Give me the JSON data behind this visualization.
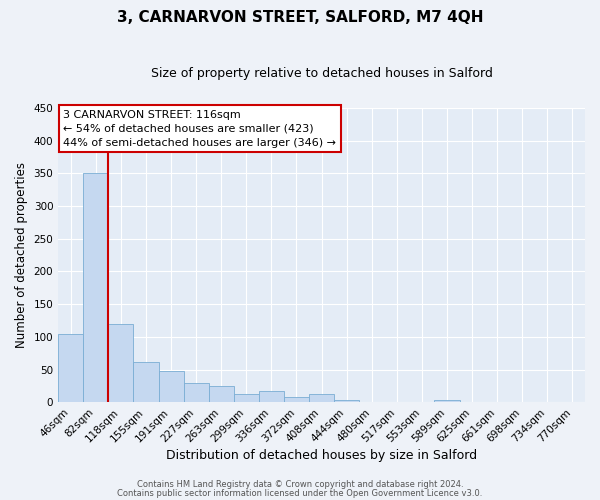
{
  "title": "3, CARNARVON STREET, SALFORD, M7 4QH",
  "subtitle": "Size of property relative to detached houses in Salford",
  "xlabel": "Distribution of detached houses by size in Salford",
  "ylabel": "Number of detached properties",
  "bin_labels": [
    "46sqm",
    "82sqm",
    "118sqm",
    "155sqm",
    "191sqm",
    "227sqm",
    "263sqm",
    "299sqm",
    "336sqm",
    "372sqm",
    "408sqm",
    "444sqm",
    "480sqm",
    "517sqm",
    "553sqm",
    "589sqm",
    "625sqm",
    "661sqm",
    "698sqm",
    "734sqm",
    "770sqm"
  ],
  "bar_values": [
    105,
    350,
    120,
    62,
    48,
    30,
    25,
    13,
    17,
    8,
    12,
    3,
    1,
    0,
    0,
    4,
    0,
    1,
    0,
    0,
    1
  ],
  "bar_color": "#c5d8f0",
  "bar_edge_color": "#7aadd4",
  "vline_color": "#cc0000",
  "ylim": [
    0,
    450
  ],
  "yticks": [
    0,
    50,
    100,
    150,
    200,
    250,
    300,
    350,
    400,
    450
  ],
  "annotation_title": "3 CARNARVON STREET: 116sqm",
  "annotation_line1": "← 54% of detached houses are smaller (423)",
  "annotation_line2": "44% of semi-detached houses are larger (346) →",
  "annotation_box_color": "#ffffff",
  "annotation_box_edge": "#cc0000",
  "footer1": "Contains HM Land Registry data © Crown copyright and database right 2024.",
  "footer2": "Contains public sector information licensed under the Open Government Licence v3.0.",
  "bg_color": "#eef2f8",
  "plot_bg_color": "#e4ecf6",
  "grid_color": "#ffffff",
  "title_fontsize": 11,
  "subtitle_fontsize": 9,
  "ylabel_fontsize": 8.5,
  "xlabel_fontsize": 9,
  "tick_fontsize": 7.5,
  "annotation_fontsize": 8,
  "footer_fontsize": 6
}
